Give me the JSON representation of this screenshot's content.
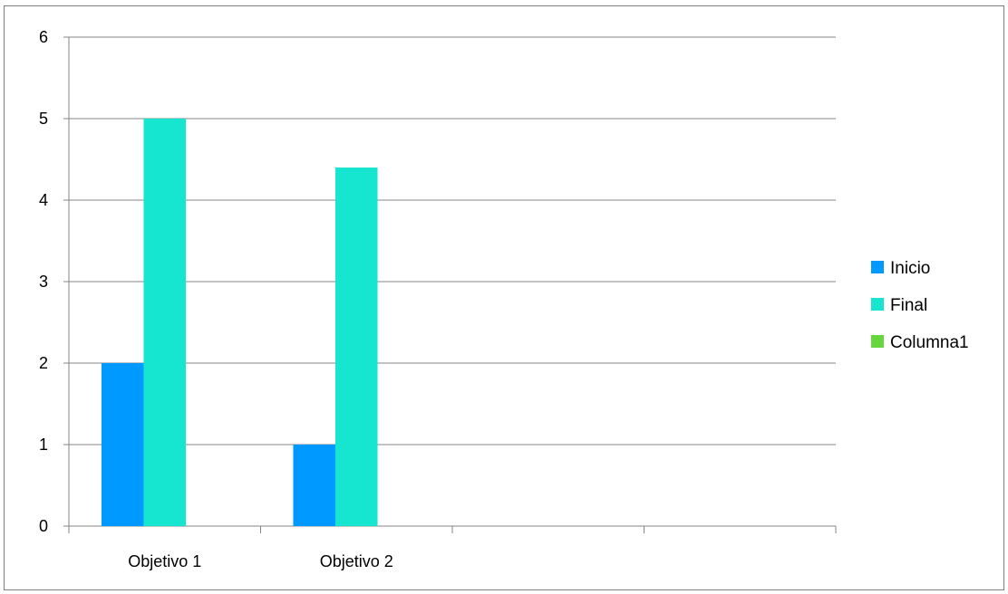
{
  "chart_data": {
    "type": "bar",
    "categories": [
      "Objetivo 1",
      "Objetivo 2",
      "",
      ""
    ],
    "series": [
      {
        "name": "Inicio",
        "values": [
          2,
          1,
          null,
          null
        ],
        "color": "#0099ff"
      },
      {
        "name": "Final",
        "values": [
          5,
          4.4,
          null,
          null
        ],
        "color": "#16e6cf"
      },
      {
        "name": "Columna1",
        "values": [
          null,
          null,
          null,
          null
        ],
        "color": "#66d63d"
      }
    ],
    "ylim": [
      0,
      6
    ],
    "yticks": [
      "0",
      "1",
      "2",
      "3",
      "4",
      "5",
      "6"
    ],
    "grid": true,
    "legend": "right",
    "title": "",
    "xlabel": "",
    "ylabel": ""
  }
}
